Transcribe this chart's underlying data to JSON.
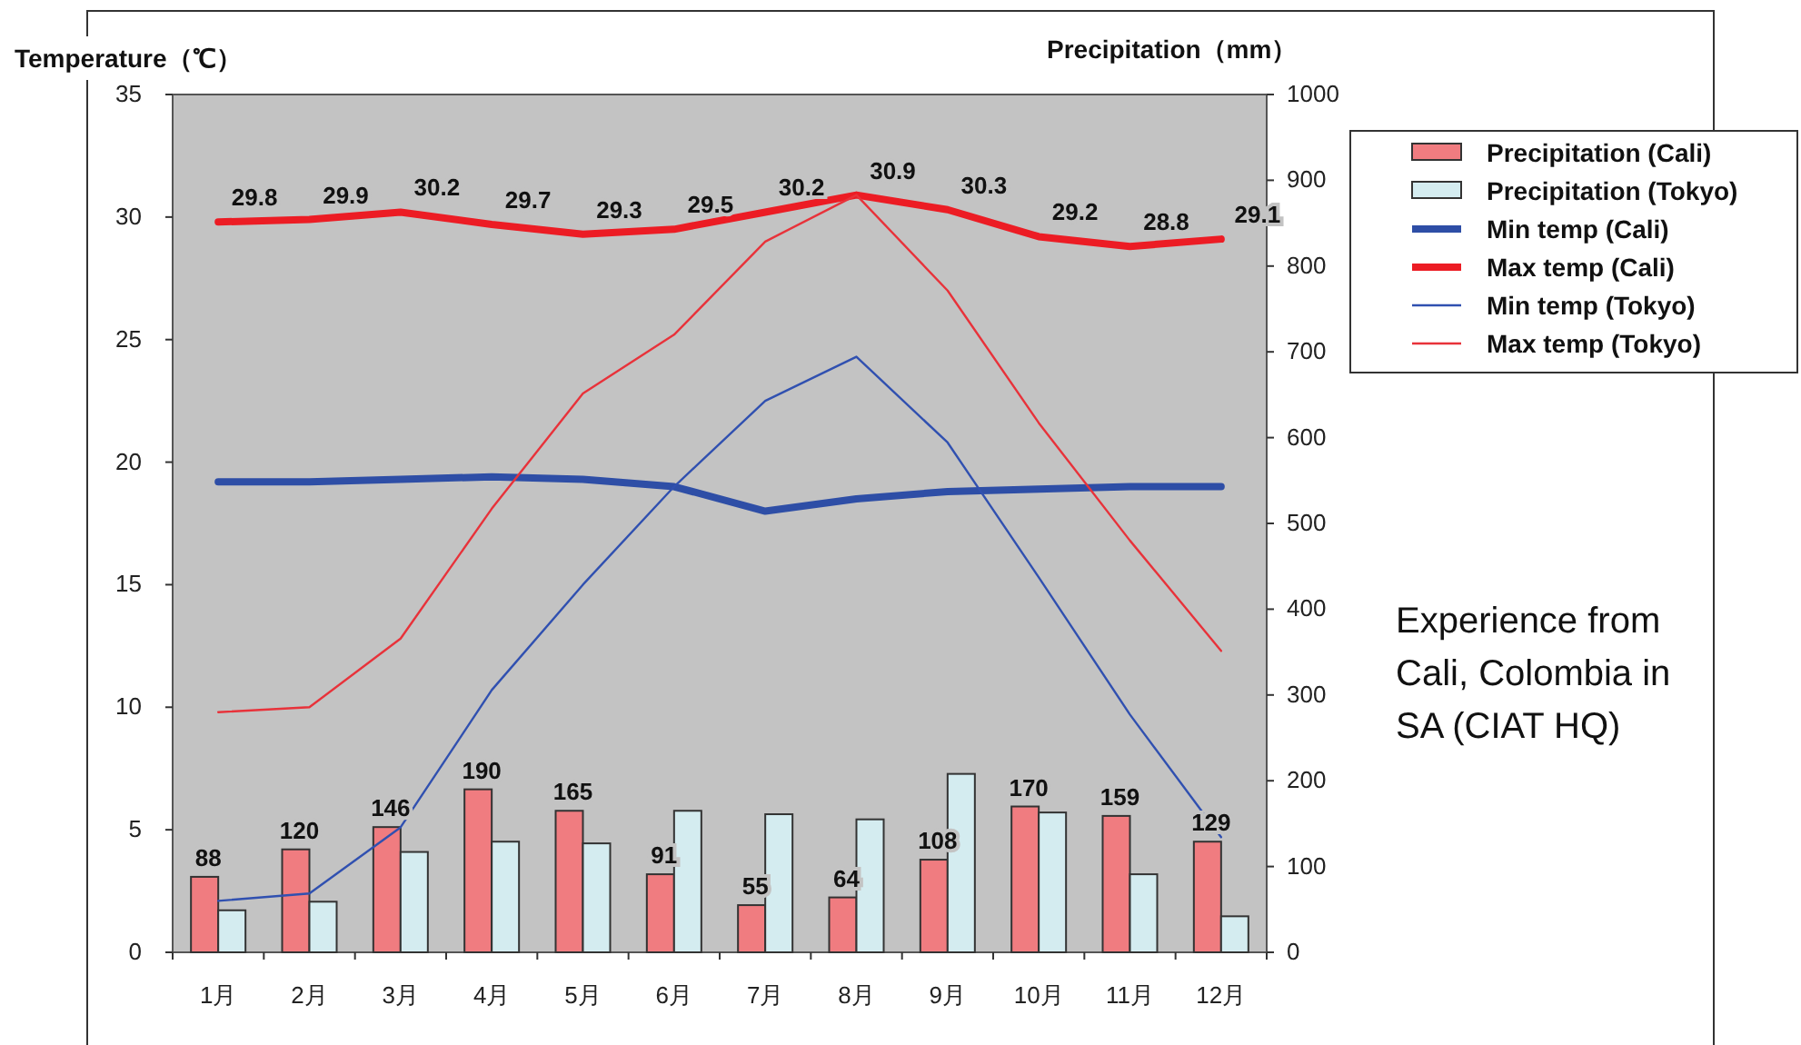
{
  "chart_data": {
    "type": "bar",
    "ylabel": "Temperature（℃）",
    "y2label": "Precipitation（mm）",
    "categories": [
      "1月",
      "2月",
      "3月",
      "4月",
      "5月",
      "6月",
      "7月",
      "8月",
      "9月",
      "10月",
      "11月",
      "12月"
    ],
    "ylim": [
      0,
      35
    ],
    "yticks": [
      0,
      5,
      10,
      15,
      20,
      25,
      30,
      35
    ],
    "y2lim": [
      0,
      1000
    ],
    "y2ticks": [
      0,
      100,
      200,
      300,
      400,
      500,
      600,
      700,
      800,
      900,
      1000
    ],
    "legend": "right",
    "series": [
      {
        "name": "Precipitation (Cali)",
        "axis": "y2",
        "color": "#f07c80",
        "values": [
          88,
          120,
          146,
          190,
          165,
          91,
          55,
          64,
          108,
          170,
          159,
          129
        ],
        "value_labels": [
          "88",
          "120",
          "146",
          "190",
          "165",
          "91",
          "55",
          "64",
          "108",
          "170",
          "159",
          "129"
        ]
      },
      {
        "name": "Precipitation (Tokyo)",
        "axis": "y2",
        "color": "#d4ecf0",
        "values": [
          49,
          59,
          117,
          129,
          127,
          165,
          161,
          155,
          208,
          163,
          91,
          42
        ]
      },
      {
        "name": "Min temp (Cali)",
        "type": "line",
        "axis": "y",
        "color": "#2e4ea6",
        "values": [
          19.2,
          19.2,
          19.3,
          19.4,
          19.3,
          19.0,
          18.0,
          18.5,
          18.8,
          18.9,
          19.0,
          19.0
        ]
      },
      {
        "name": "Max temp (Cali)",
        "type": "line",
        "axis": "y",
        "color": "#ec1c24",
        "values": [
          29.8,
          29.9,
          30.2,
          29.7,
          29.3,
          29.5,
          30.2,
          30.9,
          30.3,
          29.2,
          28.8,
          29.1
        ],
        "value_labels": [
          "29.8",
          "29.9",
          "30.2",
          "29.7",
          "29.3",
          "29.5",
          "30.2",
          "30.9",
          "30.3",
          "29.2",
          "28.8",
          "29.1"
        ]
      },
      {
        "name": "Min temp (Tokyo)",
        "type": "line",
        "axis": "y",
        "color": "#3050b0",
        "values": [
          2.1,
          2.4,
          5.1,
          10.7,
          15.0,
          19.0,
          22.5,
          24.3,
          20.8,
          15.3,
          9.7,
          4.7
        ]
      },
      {
        "name": "Max temp (Tokyo)",
        "type": "line",
        "axis": "y",
        "color": "#e8323a",
        "values": [
          9.8,
          10.0,
          12.8,
          18.1,
          22.8,
          25.2,
          29.0,
          30.9,
          27.0,
          21.6,
          16.8,
          12.3
        ]
      }
    ],
    "annotations": [
      "Experience from Cali, Colombia in SA (CIAT HQ)"
    ]
  }
}
